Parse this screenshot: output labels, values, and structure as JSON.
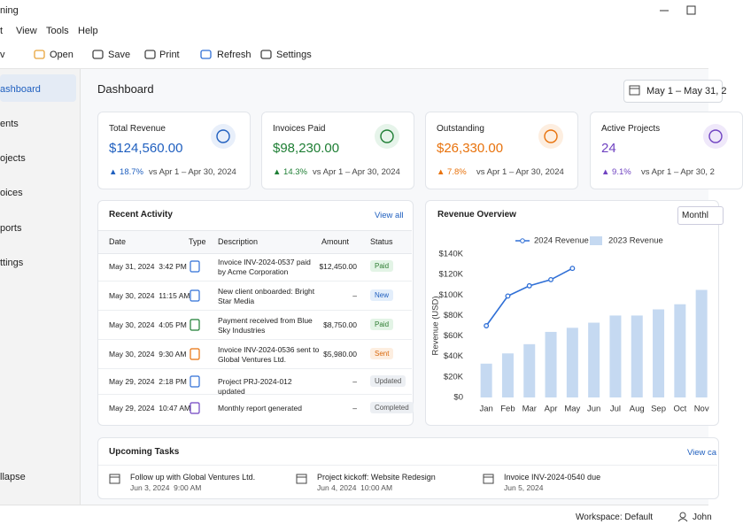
{
  "window": {
    "title": "ning"
  },
  "menu": [
    "t",
    "View",
    "Tools",
    "Help"
  ],
  "toolbar": [
    "v",
    "Open",
    "Save",
    "Print",
    "Refresh",
    "Settings"
  ],
  "sidebar": {
    "items": [
      "ashboard",
      "ents",
      "ojects",
      "oices",
      "ports",
      "ttings"
    ],
    "collapse": "llapse"
  },
  "dashboard": {
    "title": "Dashboard",
    "date_range": "May 1 – May 31, 2"
  },
  "cards": [
    {
      "title": "Total Revenue",
      "value": "$124,560.00",
      "change": "▲ 18.7%",
      "comparison": "vs Apr 1 – Apr 30, 2024"
    },
    {
      "title": "Invoices Paid",
      "value": "$98,230.00",
      "change": "▲ 14.3%",
      "comparison": "vs Apr 1 – Apr 30, 2024"
    },
    {
      "title": "Outstanding",
      "value": "$26,330.00",
      "change": "▲ 7.8%",
      "comparison": "vs Apr 1 – Apr 30, 2024"
    },
    {
      "title": "Active Projects",
      "value": "24",
      "change": "▲ 9.1%",
      "comparison": "vs Apr 1 – Apr 30, 2"
    }
  ],
  "activity": {
    "title": "Recent Activity",
    "view_all": "View all",
    "columns": [
      "Date",
      "Type",
      "Description",
      "Amount",
      "Status"
    ],
    "rows": [
      [
        "May 31, 2024  3:42 PM",
        "Invoice INV-2024-0537 paid by Acme Corporation",
        "$12,450.00",
        "Paid"
      ],
      [
        "May 30, 2024  11:15 AM",
        "New client onboarded: Bright Star Media",
        "–",
        "New"
      ],
      [
        "May 30, 2024  4:05 PM",
        "Payment received from Blue Sky Industries",
        "$8,750.00",
        "Paid"
      ],
      [
        "May 30, 2024  9:30 AM",
        "Invoice INV-2024-0536 sent to Global Ventures Ltd.",
        "$5,980.00",
        "Sent"
      ],
      [
        "May 29, 2024  2:18 PM",
        "Project PRJ-2024-012 updated",
        "–",
        "Updated"
      ],
      [
        "May 29, 2024  10:47 AM",
        "Monthly report generated",
        "–",
        "Completed"
      ]
    ]
  },
  "chart_data": {
    "type": "combo",
    "title": "Revenue Overview",
    "period": "Monthl",
    "y_label": "Revenue (USD)",
    "categories": [
      "Jan",
      "Feb",
      "Mar",
      "Apr",
      "May",
      "Jun",
      "Jul",
      "Aug",
      "Sep",
      "Oct",
      "Nov"
    ],
    "series": [
      {
        "name": "2024 Revenue",
        "type": "line",
        "color": "#2f6fd6",
        "values": [
          70000,
          99000,
          109000,
          115000,
          126000,
          null,
          null,
          null,
          null,
          null,
          null
        ]
      },
      {
        "name": "2023 Revenue",
        "type": "bar",
        "color": "#c5d9f1",
        "values": [
          33000,
          43000,
          52000,
          64000,
          68000,
          73000,
          80000,
          80000,
          86000,
          91000,
          105000
        ]
      }
    ],
    "ylim": [
      0,
      140000
    ],
    "yticks": [
      {
        "value": 0,
        "label": "$0"
      },
      {
        "value": 20000,
        "label": "$20K"
      },
      {
        "value": 40000,
        "label": "$40K"
      },
      {
        "value": 60000,
        "label": "$60K"
      },
      {
        "value": 80000,
        "label": "$80K"
      },
      {
        "value": 100000,
        "label": "$100K"
      },
      {
        "value": 120000,
        "label": "$120K"
      },
      {
        "value": 140000,
        "label": "$140K"
      }
    ],
    "grid": false,
    "legend": "top"
  },
  "tasks": {
    "title": "Upcoming Tasks",
    "view": "View ca",
    "items": [
      {
        "title": "Follow up with Global Ventures Ltd.",
        "date": "Jun 3, 2024  9:00 AM"
      },
      {
        "title": "Project kickoff: Website Redesign",
        "date": "Jun 4, 2024  10:00 AM"
      },
      {
        "title": "Invoice INV-2024-0540 due",
        "date": "Jun 5, 2024"
      }
    ]
  },
  "status": {
    "workspace": "Workspace: Default",
    "user": "John"
  }
}
